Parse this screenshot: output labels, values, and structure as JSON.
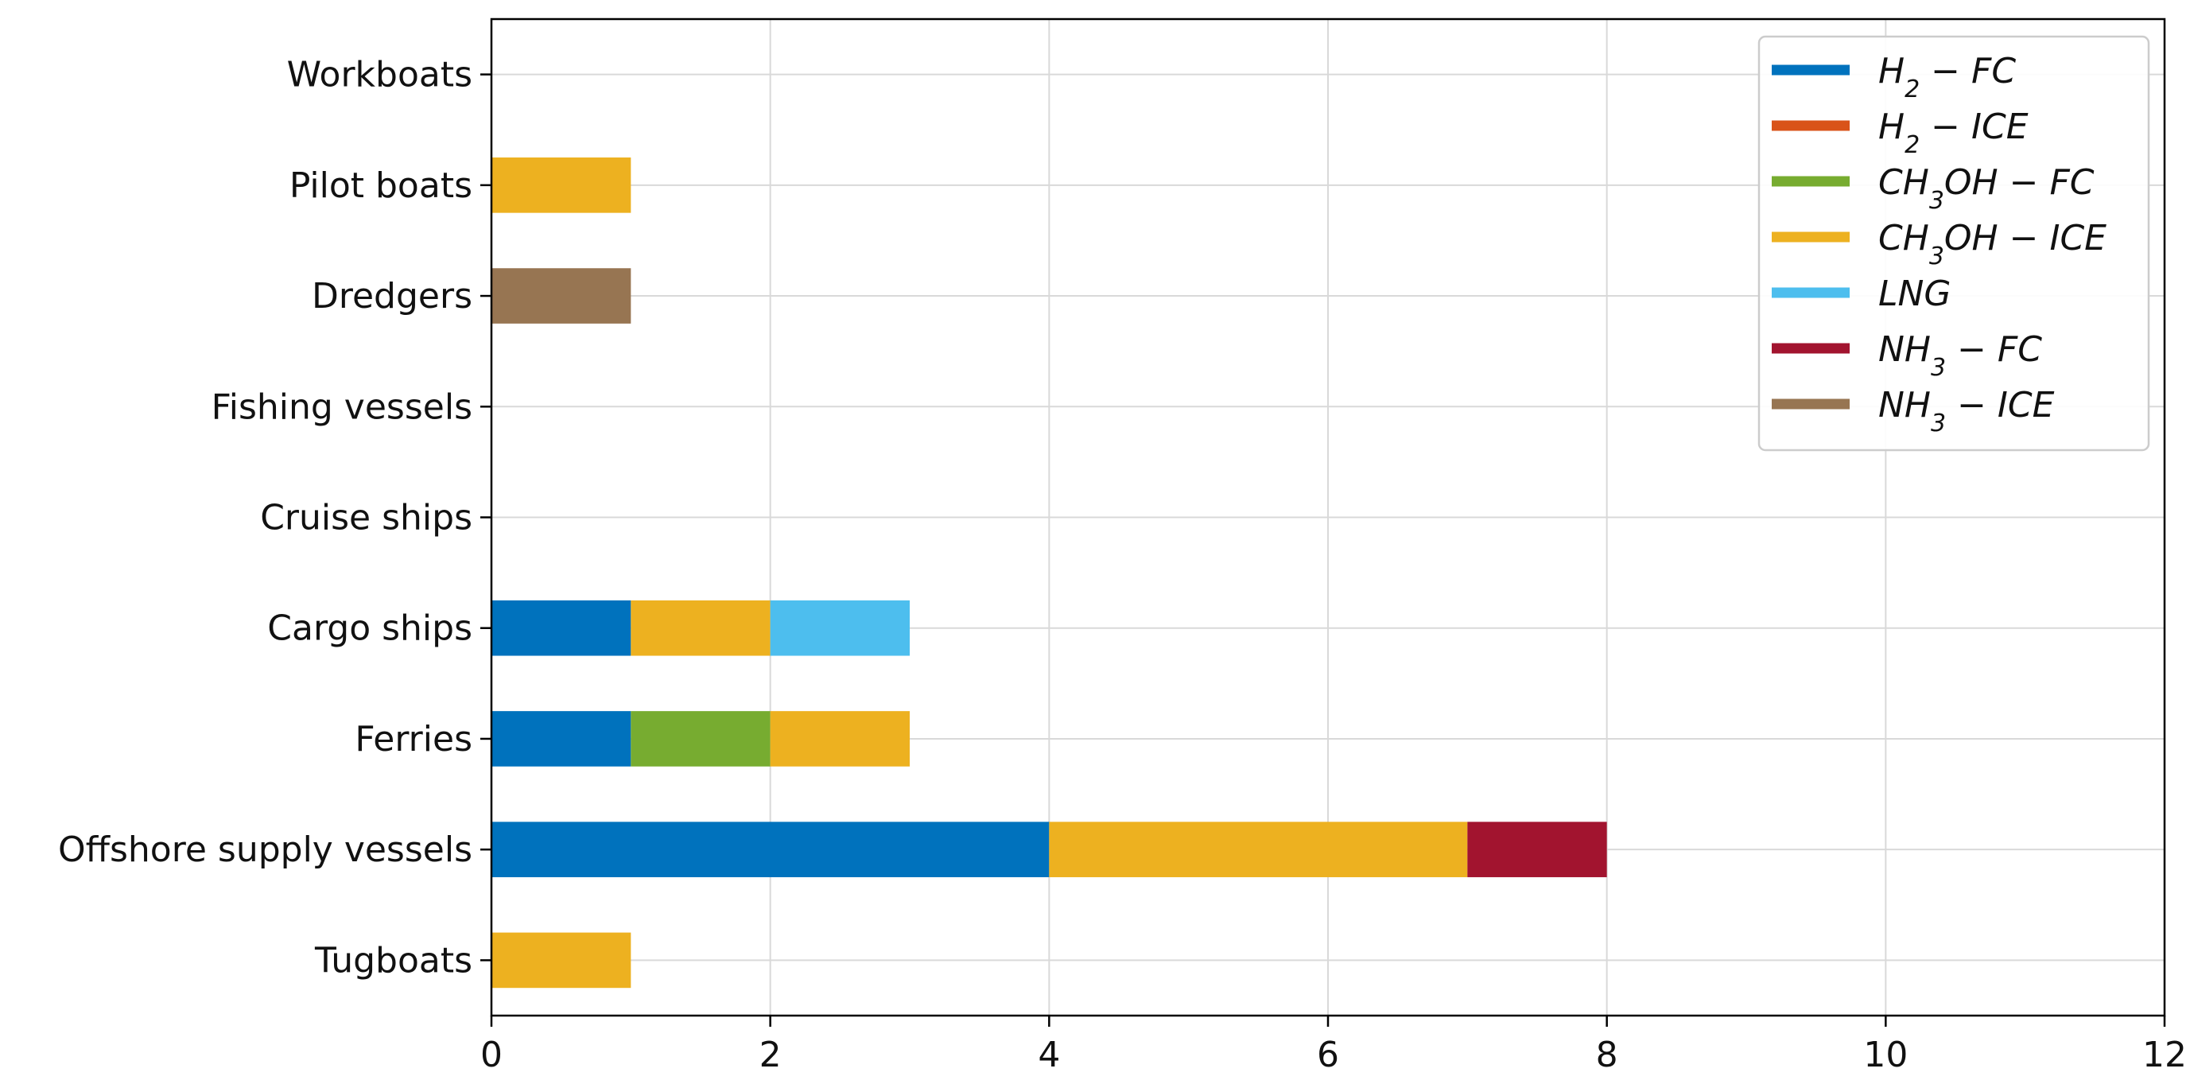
{
  "chart_data": {
    "type": "bar",
    "orientation": "horizontal",
    "stacked": true,
    "title": "",
    "xlabel": "",
    "ylabel": "",
    "xlim": [
      0,
      12
    ],
    "xticks": [
      0,
      2,
      4,
      6,
      8,
      10,
      12
    ],
    "grid": true,
    "legend_position": "top-right",
    "categories": [
      "Tugboats",
      "Offshore supply vessels",
      "Ferries",
      "Cargo ships",
      "Cruise ships",
      "Fishing vessels",
      "Dredgers",
      "Pilot boats",
      "Workboats"
    ],
    "series": [
      {
        "name": "H2 − FC",
        "label_main": "H",
        "label_sub": "2",
        "label_rest": " − FC",
        "color": "#0072BD",
        "values": [
          0,
          4,
          1,
          1,
          0,
          0,
          0,
          0,
          0
        ]
      },
      {
        "name": "H2 − ICE",
        "label_main": "H",
        "label_sub": "2",
        "label_rest": " − ICE",
        "color": "#D95319",
        "values": [
          0,
          0,
          0,
          0,
          0,
          0,
          0,
          0,
          0
        ]
      },
      {
        "name": "CH3OH − FC",
        "label_main": "CH",
        "label_sub": "3",
        "label_rest": "OH − FC",
        "color": "#77AC30",
        "values": [
          0,
          0,
          1,
          0,
          0,
          0,
          0,
          0,
          0
        ]
      },
      {
        "name": "CH3OH − ICE",
        "label_main": "CH",
        "label_sub": "3",
        "label_rest": "OH − ICE",
        "color": "#EDB120",
        "values": [
          1,
          3,
          1,
          1,
          0,
          0,
          0,
          1,
          0
        ]
      },
      {
        "name": "LNG",
        "label_main": "LNG",
        "label_sub": "",
        "label_rest": "",
        "color": "#4DBEEE",
        "values": [
          0,
          0,
          0,
          1,
          0,
          0,
          0,
          0,
          0
        ]
      },
      {
        "name": "NH3 − FC",
        "label_main": "NH",
        "label_sub": "3",
        "label_rest": " − FC",
        "color": "#A2142F",
        "values": [
          0,
          1,
          0,
          0,
          0,
          0,
          0,
          0,
          0
        ]
      },
      {
        "name": "NH3 − ICE",
        "label_main": "NH",
        "label_sub": "3",
        "label_rest": " − ICE",
        "color": "#977552",
        "values": [
          0,
          0,
          0,
          0,
          0,
          0,
          1,
          0,
          0
        ]
      }
    ]
  }
}
